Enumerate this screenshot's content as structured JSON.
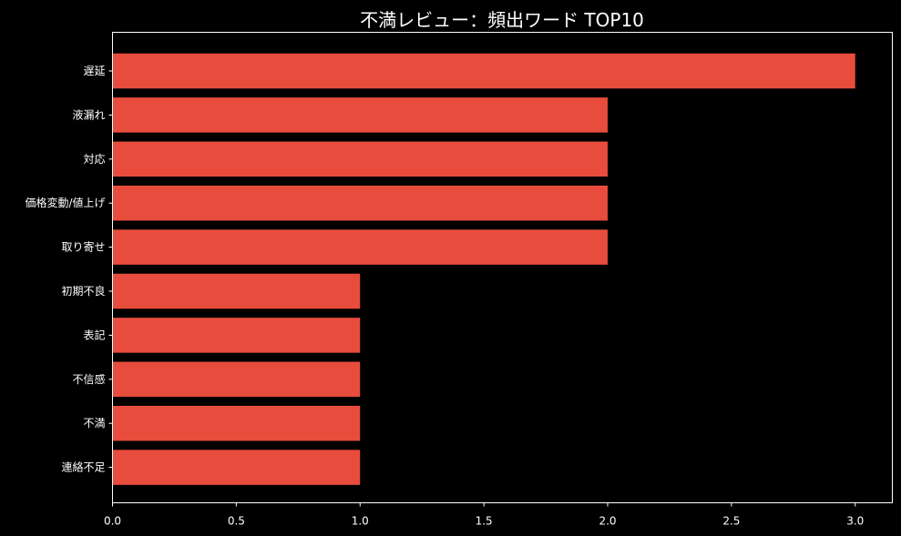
{
  "chart_data": {
    "type": "bar",
    "orientation": "horizontal",
    "title": "不満レビュー：頻出ワード TOP10",
    "xlabel": "",
    "ylabel": "",
    "categories": [
      "遅延",
      "液漏れ",
      "対応",
      "価格変動/値上げ",
      "取り寄せ",
      "初期不良",
      "表記",
      "不信感",
      "不満",
      "連絡不足"
    ],
    "values": [
      3,
      2,
      2,
      2,
      2,
      1,
      1,
      1,
      1,
      1
    ],
    "xlim": [
      0,
      3.15
    ],
    "xticks": [
      0.0,
      0.5,
      1.0,
      1.5,
      2.0,
      2.5,
      3.0
    ],
    "xtick_labels": [
      "0.0",
      "0.5",
      "1.0",
      "1.5",
      "2.0",
      "2.5",
      "3.0"
    ],
    "grid": false,
    "legend": "none",
    "colors": {
      "background": "#000000",
      "bar": "#e84c3d",
      "axis": "#ffffff",
      "text": "#ffffff"
    }
  }
}
